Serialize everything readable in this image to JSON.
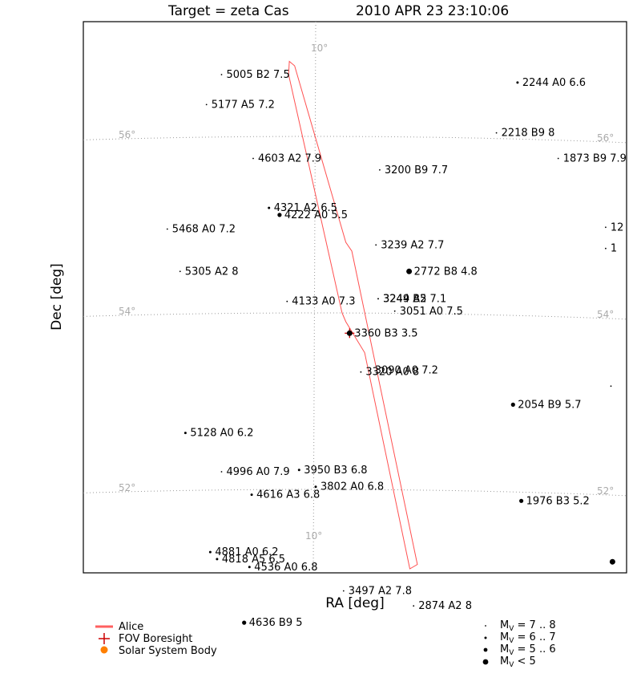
{
  "chart_data": {
    "type": "scatter",
    "title": "Target = zeta Cas",
    "timestamp": "2010 APR 23 23:10:06",
    "xlabel": "RA [deg]",
    "ylabel": "Dec [deg]",
    "grid": true,
    "grid_labels": {
      "dec": [
        {
          "value": 56,
          "label": "56°"
        },
        {
          "value": 54,
          "label": "54°"
        },
        {
          "value": 52,
          "label": "52°"
        }
      ],
      "ra": [
        {
          "value": 10,
          "label": "10°"
        }
      ]
    },
    "stars": [
      {
        "label": "5005 B2 7.5",
        "x": -1.25,
        "y": 56.7,
        "mag": 7.5
      },
      {
        "label": "5177 A5 7.2",
        "x": -1.45,
        "y": 56.36,
        "mag": 7.2
      },
      {
        "label": "2244 A0 6.6",
        "x": 2.68,
        "y": 56.61,
        "mag": 6.6
      },
      {
        "label": "2218 B9 8",
        "x": 2.4,
        "y": 56.04,
        "mag": 8
      },
      {
        "label": "4603 A2 7.9",
        "x": -0.83,
        "y": 55.75,
        "mag": 7.9
      },
      {
        "label": "3200 B9 7.7",
        "x": 0.85,
        "y": 55.62,
        "mag": 7.7
      },
      {
        "label": "1873 B9 7.9",
        "x": 3.22,
        "y": 55.75,
        "mag": 7.9
      },
      {
        "label": "4321 A2 6.5",
        "x": -0.62,
        "y": 55.19,
        "mag": 6.5
      },
      {
        "label": "4222 A0 5.5",
        "x": -0.48,
        "y": 55.11,
        "mag": 5.5
      },
      {
        "label": "5468 A0 7.2",
        "x": -1.97,
        "y": 54.95,
        "mag": 7.2
      },
      {
        "label": "3239 A2 7.7",
        "x": 0.8,
        "y": 54.77,
        "mag": 7.7
      },
      {
        "label": "2772 B8 4.8",
        "x": 1.24,
        "y": 54.47,
        "mag": 4.8
      },
      {
        "label": "5305 A2 8",
        "x": -1.8,
        "y": 54.47,
        "mag": 8
      },
      {
        "label": "3249 B5 7.1",
        "x": 0.83,
        "y": 54.16,
        "mag": 7.1
      },
      {
        "label": "3244 A2",
        "x": 0.83,
        "y": 54.16,
        "mag": 7.1
      },
      {
        "label": "4133 A0 7.3",
        "x": -0.38,
        "y": 54.13,
        "mag": 7.3
      },
      {
        "label": "3051 A0 7.5",
        "x": 1.05,
        "y": 54.02,
        "mag": 7.5
      },
      {
        "label": "3360 B3 3.5",
        "x": 0.45,
        "y": 53.77,
        "mag": 3.5
      },
      {
        "label": "3320 A0 8",
        "x": 0.6,
        "y": 53.33,
        "mag": 8
      },
      {
        "label": "3090 A0 7.2",
        "x": 0.72,
        "y": 53.35,
        "mag": 7.2
      },
      {
        "label": "2054 B9 5.7",
        "x": 2.62,
        "y": 52.96,
        "mag": 5.7
      },
      {
        "label": "5128 A0 6.2",
        "x": -1.73,
        "y": 52.64,
        "mag": 6.2
      },
      {
        "label": "4996 A0 7.9",
        "x": -1.25,
        "y": 52.2,
        "mag": 7.9
      },
      {
        "label": "3950 B3 6.8",
        "x": -0.22,
        "y": 52.22,
        "mag": 6.8
      },
      {
        "label": "3802 A0 6.8",
        "x": 0.0,
        "y": 52.03,
        "mag": 6.8
      },
      {
        "label": "4616 A3 6.8",
        "x": -0.85,
        "y": 51.94,
        "mag": 6.8
      },
      {
        "label": "1976 B3 5.2",
        "x": 2.73,
        "y": 51.87,
        "mag": 5.2
      },
      {
        "label": "4881 A0 6.2",
        "x": -1.4,
        "y": 51.29,
        "mag": 6.2
      },
      {
        "label": "4818 A5 6.5",
        "x": -1.31,
        "y": 51.21,
        "mag": 6.5
      },
      {
        "label": "4536 A0 6.8",
        "x": -0.88,
        "y": 51.12,
        "mag": 6.8
      },
      {
        "label": "3497 A2 7.8",
        "x": 0.37,
        "y": 50.85,
        "mag": 7.8
      },
      {
        "label": "2874 A2 8",
        "x": 1.3,
        "y": 50.68,
        "mag": 8
      },
      {
        "label": "4636 B9 5",
        "x": -0.95,
        "y": 50.49,
        "mag": 5
      },
      {
        "label": "12",
        "x": 3.85,
        "y": 54.97,
        "mag": 7.5
      },
      {
        "label": "1",
        "x": 3.85,
        "y": 54.73,
        "mag": 7.5
      },
      {
        "label": "",
        "x": 3.92,
        "y": 53.17,
        "mag": 7.8
      },
      {
        "label": "",
        "x": 3.94,
        "y": 51.18,
        "mag": 4.8
      }
    ],
    "fov_outline": [
      [
        -0.35,
        56.85
      ],
      [
        -0.28,
        56.8
      ],
      [
        0.4,
        54.8
      ],
      [
        0.48,
        54.7
      ],
      [
        1.35,
        51.15
      ],
      [
        1.25,
        51.1
      ],
      [
        0.65,
        53.55
      ],
      [
        0.4,
        53.9
      ],
      [
        0.35,
        54.0
      ],
      [
        -0.36,
        56.7
      ]
    ],
    "fov_boresight": {
      "x": 0.45,
      "y": 53.77
    },
    "legend": {
      "items": [
        {
          "name": "Alice",
          "color": "#ff6060"
        },
        {
          "name": "FOV Boresight",
          "color": "#cc0000"
        },
        {
          "name": "Solar System Body",
          "color": "#ff7f00"
        }
      ],
      "mag_bins": [
        {
          "label": "M",
          "sub": "V",
          "range": " = 7 .. 8"
        },
        {
          "label": "M",
          "sub": "V",
          "range": " = 6 .. 7"
        },
        {
          "label": "M",
          "sub": "V",
          "range": " = 5 .. 6"
        },
        {
          "label": "M",
          "sub": "V",
          "range": " < 5"
        }
      ]
    }
  }
}
